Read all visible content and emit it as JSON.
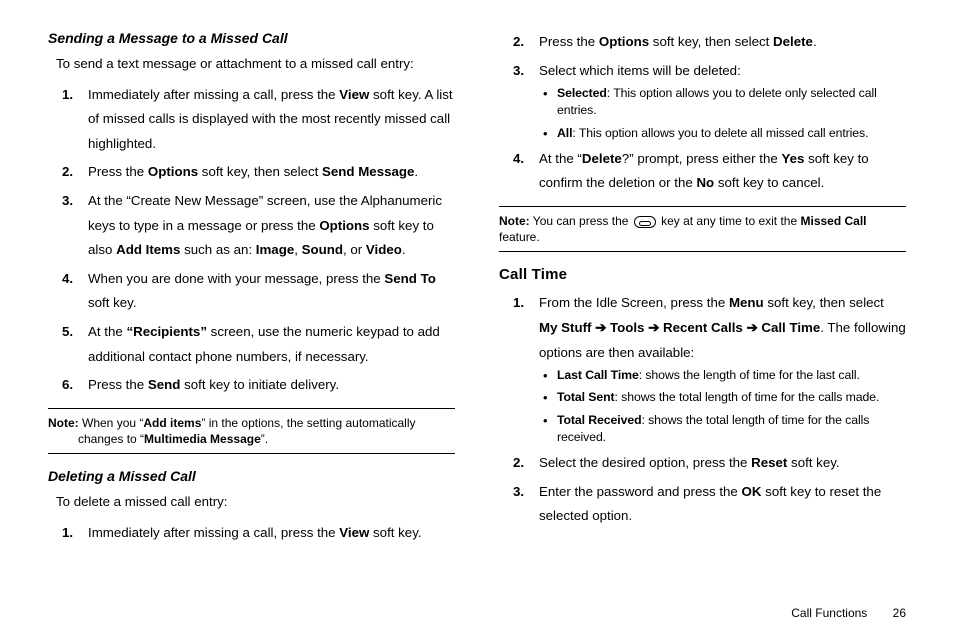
{
  "left": {
    "heading1": "Sending a Message to a Missed Call",
    "intro1": "To send a text message or attachment to a missed call entry:",
    "steps1": {
      "s1a": "Immediately after missing a call, press the ",
      "s1b": "View",
      "s1c": " soft key. A list of missed calls is displayed with the most recently missed call highlighted.",
      "s2a": "Press the ",
      "s2b": "Options",
      "s2c": " soft key, then select ",
      "s2d": "Send Message",
      "s2e": ".",
      "s3a": "At the “Create New Message” screen, use the Alphanumeric keys to type in a message or press the ",
      "s3b": "Options",
      "s3c": " soft key to also ",
      "s3d": "Add Items",
      "s3e": " such as an: ",
      "s3f": "Image",
      "s3g": ", ",
      "s3h": "Sound",
      "s3i": ", or ",
      "s3j": "Video",
      "s3k": ".",
      "s4a": "When you are done with your message, press the ",
      "s4b": "Send To",
      "s4c": " soft key.",
      "s5a": "At the ",
      "s5b": "“Recipients”",
      "s5c": " screen, use the numeric keypad to add additional contact phone numbers, if necessary.",
      "s6a": "Press the ",
      "s6b": "Send",
      "s6c": " soft key to initiate delivery."
    },
    "note1": {
      "label": "Note:",
      "a": " When you “",
      "b": "Add items",
      "c": "” in the options, the setting automatically ",
      "d": "changes to “",
      "e": "Multimedia Message",
      "f": "”."
    },
    "heading2": "Deleting a Missed Call",
    "intro2": "To delete a missed call entry:"
  },
  "right": {
    "steps2": {
      "s1a": "Immediately after missing a call, press the ",
      "s1b": "View",
      "s1c": " soft key.",
      "s2a": "Press the ",
      "s2b": "Options",
      "s2c": " soft key, then select ",
      "s2d": "Delete",
      "s2e": ".",
      "s3": "Select which items will be deleted:",
      "b1a": "Selected",
      "b1b": ": This option allows you to delete only selected call entries.",
      "b2a": "All",
      "b2b": ": This option allows you to delete all missed call entries.",
      "s4a": "At the “",
      "s4b": "Delete",
      "s4c": "?” prompt, press either the ",
      "s4d": "Yes",
      "s4e": " soft key to confirm the deletion or the ",
      "s4f": "No",
      "s4g": " soft key to cancel."
    },
    "note2": {
      "label": "Note:",
      "a": " You can press the ",
      "b": " key at any time to exit the ",
      "c": "Missed Call",
      "d": " feature."
    },
    "heading3": "Call Time",
    "steps3": {
      "s1a": "From the Idle Screen, press the ",
      "s1b": "Menu",
      "s1c": " soft key, then select ",
      "path1": "My Stuff",
      "arrow": " ➔ ",
      "path2": "Tools",
      "path3": "Recent Calls",
      "path4": "Call Time",
      "s1d": ". The following options are then available:",
      "b1a": "Last Call Time",
      "b1b": ": shows the length of time for the last call.",
      "b2a": "Total Sent",
      "b2b": ": shows the total length of time for the calls made.",
      "b3a": "Total Received",
      "b3b": ": shows the total length of time for the calls received.",
      "s2a": "Select the desired option, press the ",
      "s2b": "Reset",
      "s2c": " soft key.",
      "s3a": "Enter the password and press the ",
      "s3b": "OK",
      "s3c": " soft key to reset the selected option."
    }
  },
  "footer": {
    "section": "Call Functions",
    "page": "26"
  }
}
